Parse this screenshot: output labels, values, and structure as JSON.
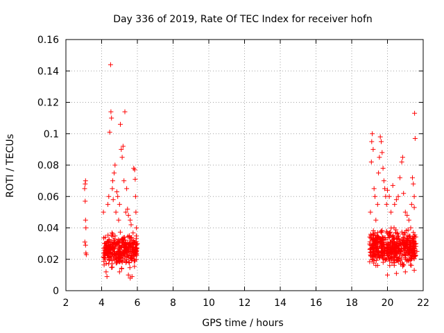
{
  "chart_data": {
    "type": "scatter",
    "title": "Day 336 of 2019, Rate Of TEC Index for receiver hofn",
    "xlabel": "GPS time / hours",
    "ylabel": "ROTI / TECUs",
    "xlim": [
      2,
      22
    ],
    "ylim": [
      0,
      0.16
    ],
    "xticks": [
      2,
      4,
      6,
      8,
      10,
      12,
      14,
      16,
      18,
      20,
      22
    ],
    "xtick_labels": [
      "2",
      "4",
      "6",
      "8",
      "10",
      "12",
      "14",
      "16",
      "18",
      "20",
      "22"
    ],
    "yticks": [
      0,
      0.02,
      0.04,
      0.06,
      0.08,
      0.1,
      0.12,
      0.14,
      0.16
    ],
    "ytick_labels": [
      "0",
      "0.02",
      "0.04",
      "0.06",
      "0.08",
      "0.1",
      "0.12",
      "0.14",
      "0.16"
    ],
    "grid": true,
    "marker": "+",
    "color": "#ff0000",
    "series": [
      {
        "name": "ROTI",
        "points": [
          [
            3.05,
            0.065
          ],
          [
            3.08,
            0.057
          ],
          [
            3.1,
            0.045
          ],
          [
            3.12,
            0.04
          ],
          [
            3.06,
            0.031
          ],
          [
            3.1,
            0.029
          ],
          [
            3.12,
            0.024
          ],
          [
            3.14,
            0.023
          ],
          [
            3.08,
            0.068
          ],
          [
            3.1,
            0.07
          ],
          [
            4.1,
            0.05
          ],
          [
            4.15,
            0.03
          ],
          [
            4.2,
            0.02
          ],
          [
            4.25,
            0.012
          ],
          [
            4.3,
            0.009
          ],
          [
            4.35,
            0.055
          ],
          [
            4.4,
            0.06
          ],
          [
            4.45,
            0.101
          ],
          [
            4.5,
            0.144
          ],
          [
            4.52,
            0.114
          ],
          [
            4.55,
            0.11
          ],
          [
            4.6,
            0.065
          ],
          [
            4.62,
            0.07
          ],
          [
            4.65,
            0.058
          ],
          [
            4.7,
            0.075
          ],
          [
            4.75,
            0.08
          ],
          [
            4.8,
            0.05
          ],
          [
            4.85,
            0.063
          ],
          [
            4.9,
            0.06
          ],
          [
            4.95,
            0.045
          ],
          [
            5.0,
            0.055
          ],
          [
            5.05,
            0.106
          ],
          [
            5.1,
            0.09
          ],
          [
            5.15,
            0.085
          ],
          [
            5.2,
            0.092
          ],
          [
            5.25,
            0.07
          ],
          [
            5.3,
            0.114
          ],
          [
            5.35,
            0.05
          ],
          [
            5.4,
            0.065
          ],
          [
            5.45,
            0.052
          ],
          [
            5.5,
            0.048
          ],
          [
            5.55,
            0.035
          ],
          [
            5.6,
            0.045
          ],
          [
            5.65,
            0.042
          ],
          [
            5.7,
            0.03
          ],
          [
            5.75,
            0.025
          ],
          [
            5.8,
            0.078
          ],
          [
            5.85,
            0.077
          ],
          [
            5.88,
            0.071
          ],
          [
            5.9,
            0.06
          ],
          [
            5.92,
            0.05
          ],
          [
            5.95,
            0.04
          ],
          [
            5.6,
            0.008
          ],
          [
            5.7,
            0.009
          ],
          [
            5.5,
            0.01
          ],
          [
            5.0,
            0.012
          ],
          [
            4.6,
            0.015
          ],
          [
            19.05,
            0.05
          ],
          [
            19.1,
            0.082
          ],
          [
            19.12,
            0.095
          ],
          [
            19.15,
            0.1
          ],
          [
            19.2,
            0.09
          ],
          [
            19.25,
            0.065
          ],
          [
            19.3,
            0.06
          ],
          [
            19.35,
            0.045
          ],
          [
            19.4,
            0.035
          ],
          [
            19.45,
            0.055
          ],
          [
            19.5,
            0.075
          ],
          [
            19.55,
            0.085
          ],
          [
            19.6,
            0.098
          ],
          [
            19.65,
            0.095
          ],
          [
            19.7,
            0.088
          ],
          [
            19.75,
            0.078
          ],
          [
            19.8,
            0.07
          ],
          [
            19.85,
            0.065
          ],
          [
            19.9,
            0.06
          ],
          [
            19.95,
            0.055
          ],
          [
            20.0,
            0.064
          ],
          [
            20.1,
            0.06
          ],
          [
            20.2,
            0.05
          ],
          [
            20.3,
            0.067
          ],
          [
            20.4,
            0.055
          ],
          [
            20.5,
            0.058
          ],
          [
            20.6,
            0.06
          ],
          [
            20.7,
            0.072
          ],
          [
            20.8,
            0.082
          ],
          [
            20.85,
            0.085
          ],
          [
            20.9,
            0.062
          ],
          [
            21.0,
            0.05
          ],
          [
            21.1,
            0.048
          ],
          [
            21.2,
            0.045
          ],
          [
            21.3,
            0.04
          ],
          [
            21.35,
            0.055
          ],
          [
            21.4,
            0.072
          ],
          [
            21.45,
            0.068
          ],
          [
            21.5,
            0.06
          ],
          [
            21.52,
            0.113
          ],
          [
            21.55,
            0.097
          ],
          [
            21.5,
            0.053
          ],
          [
            21.6,
            0.03
          ],
          [
            21.65,
            0.025
          ],
          [
            20.0,
            0.01
          ],
          [
            20.5,
            0.011
          ],
          [
            21.0,
            0.012
          ],
          [
            21.5,
            0.013
          ]
        ],
        "dense_regions": [
          {
            "x_range": [
              4.1,
              6.0
            ],
            "y_range": [
              0.012,
              0.04
            ],
            "count": 340
          },
          {
            "x_range": [
              19.0,
              21.6
            ],
            "y_range": [
              0.012,
              0.042
            ],
            "count": 520
          }
        ]
      }
    ]
  }
}
